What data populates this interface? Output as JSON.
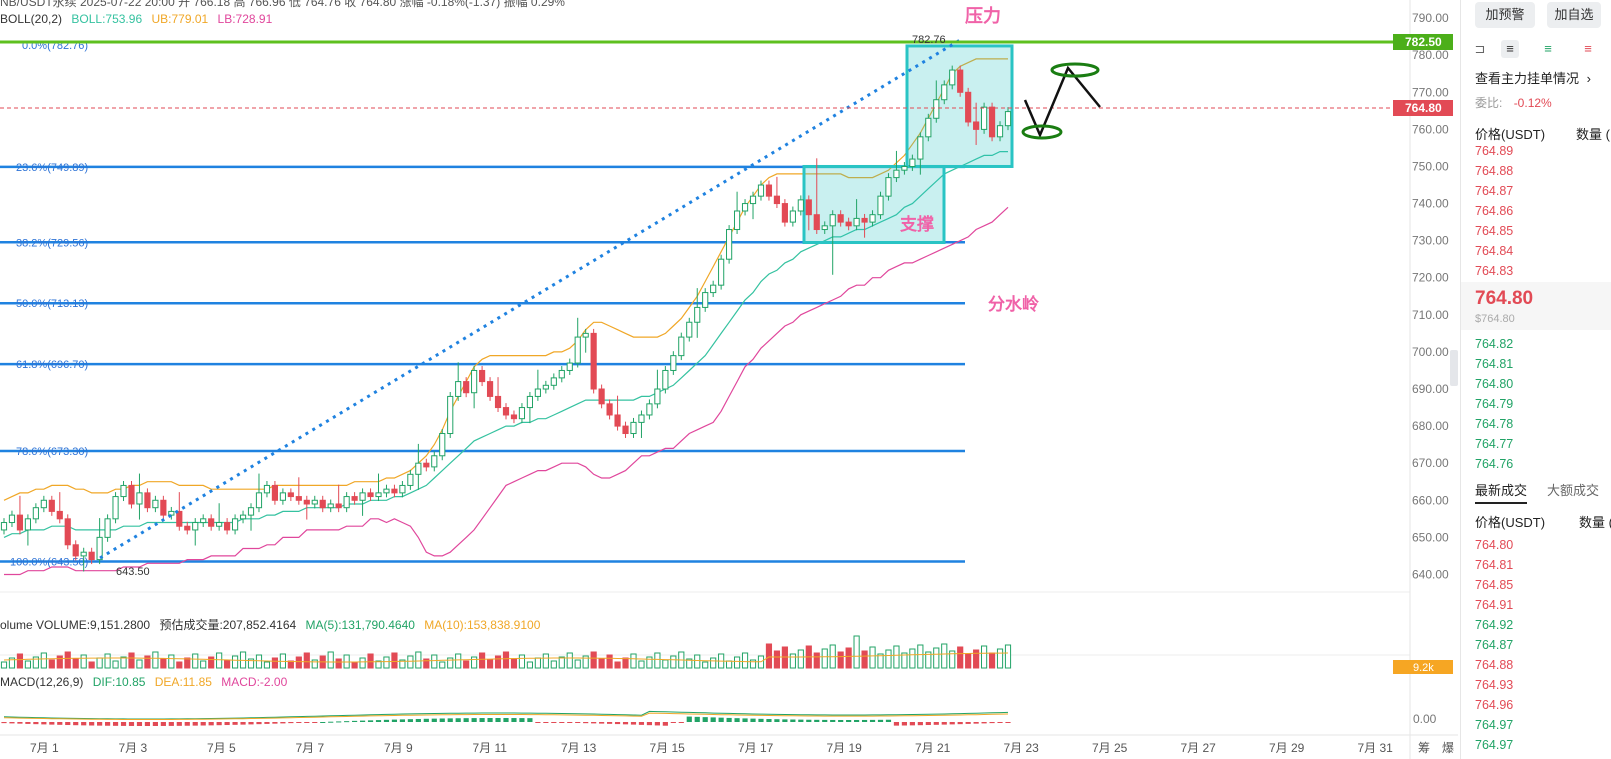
{
  "header": {
    "line1": "NB/USDT永续  2025-07-22 20:00  开 766.18  高 766.96  低 764.76  收 764.80  涨幅 -0.18%(-1.37)  振幅 0.29%",
    "boll_label": "BOLL(20,2)",
    "boll_mid": "BOLL:753.96",
    "boll_ub": "UB:779.01",
    "boll_lb": "LB:728.91"
  },
  "annotations": {
    "pressure": "压力",
    "support": "支撑",
    "watershed": "分水岭",
    "top_price": "782.76",
    "bottom_price": "643.50"
  },
  "volume_header": {
    "label": "olume  VOLUME:9,151.2800",
    "forecast": "预估成交量:207,852.4164",
    "ma5": "MA(5):131,790.4640",
    "ma10": "MA(10):153,838.9100"
  },
  "macd_header": {
    "label": "MACD(12,26,9)",
    "dif": "DIF:10.85",
    "dea": "DEA:11.85",
    "macd": "MACD:-2.00"
  },
  "price_tags": {
    "green": "782.50",
    "red": "764.80",
    "volume": "9.2k",
    "macd_zero": "0.00"
  },
  "colors": {
    "up": "#21a366",
    "down": "#e24a55",
    "fib": "#1f82e0",
    "boll_mid": "#35c2a0",
    "boll_ub": "#f0a727",
    "boll_lb": "#e0479c",
    "resistance": "#5ec01f",
    "box": "#29c4c4",
    "annotation": "#f062a8"
  },
  "chart_data": {
    "type": "candlestick",
    "symbol": "NB/USDT",
    "interval": "4h",
    "ylim": [
      635,
      793
    ],
    "y_ticks": [
      "790.00",
      "780.00",
      "770.00",
      "760.00",
      "750.00",
      "740.00",
      "730.00",
      "720.00",
      "710.00",
      "700.00",
      "690.00",
      "680.00",
      "670.00",
      "660.00",
      "650.00",
      "640.00"
    ],
    "x_labels": [
      "7月 1",
      "7月 3",
      "7月 5",
      "7月 7",
      "7月 9",
      "7月 11",
      "7月 13",
      "7月 15",
      "7月 17",
      "7月 19",
      "7月 21",
      "7月 23",
      "7月 25",
      "7月 27",
      "7月 29",
      "7月 31"
    ],
    "x_extra": [
      "筹",
      "爆"
    ],
    "fib_levels": [
      {
        "label": "0.0%(782.76)",
        "value": 782.76
      },
      {
        "label": "23.6%(749.89)",
        "value": 749.89
      },
      {
        "label": "38.2%(729.56)",
        "value": 729.56
      },
      {
        "label": "50.0%(713.13)",
        "value": 713.13
      },
      {
        "label": "61.8%(696.70)",
        "value": 696.7
      },
      {
        "label": "78.6%(673.30)",
        "value": 673.3
      },
      {
        "label": "100.0%(643.50)",
        "value": 643.5
      }
    ],
    "resistance_line": 782.5,
    "current_price": 764.8,
    "boxes": [
      {
        "name": "resistance-box",
        "from_day": 21.5,
        "to_day": 23.0,
        "low": 750,
        "high": 782.5
      },
      {
        "name": "support-box",
        "from_day": 18.6,
        "to_day": 21.2,
        "low": 729.5,
        "high": 750
      }
    ],
    "close_prices": [
      654,
      656,
      652,
      655,
      658,
      660,
      657,
      655,
      648,
      645,
      646,
      644,
      650,
      655,
      661,
      664,
      659,
      662,
      658,
      660,
      656,
      657,
      653,
      652,
      654,
      655,
      653,
      654,
      652,
      655,
      656,
      658,
      662,
      664,
      660,
      662,
      661,
      660,
      659,
      660,
      658,
      659,
      658,
      661,
      660,
      662,
      661,
      662,
      663,
      662,
      664,
      667,
      670,
      669,
      672,
      678,
      688,
      692,
      689,
      695,
      692,
      688,
      685,
      683,
      682,
      685,
      688,
      690,
      691,
      693,
      695,
      697,
      704,
      705,
      690,
      686,
      683,
      680,
      678,
      681,
      683,
      686,
      690,
      695,
      699,
      704,
      708,
      712,
      716,
      718,
      725,
      733,
      738,
      740,
      742,
      745,
      742,
      740,
      735,
      738,
      741,
      737,
      733,
      734,
      737,
      735,
      734,
      736,
      735,
      737,
      742,
      747,
      749,
      750,
      752,
      758,
      763,
      768,
      772,
      776,
      770,
      762,
      760,
      766,
      758,
      761,
      764.8
    ],
    "boll_upper": [
      660,
      661,
      662,
      662,
      663,
      663,
      664,
      664,
      664,
      663,
      663,
      662,
      662,
      662,
      663,
      663,
      664,
      664,
      665,
      665,
      665,
      665,
      664,
      664,
      664,
      664,
      663,
      663,
      663,
      663,
      663,
      663,
      663,
      663,
      664,
      664,
      664,
      664,
      664,
      664,
      664,
      664,
      664,
      664,
      665,
      665,
      665,
      665,
      666,
      666,
      667,
      668,
      670,
      672,
      675,
      679,
      684,
      688,
      692,
      696,
      698,
      699,
      699,
      699,
      699,
      699,
      699,
      699,
      699,
      700,
      700,
      701,
      703,
      706,
      708,
      708,
      707,
      706,
      705,
      704,
      704,
      704,
      704,
      705,
      707,
      709,
      712,
      715,
      719,
      723,
      727,
      731,
      735,
      739,
      742,
      745,
      747,
      748,
      748,
      748,
      748,
      748,
      748,
      748,
      748,
      748,
      747,
      747,
      747,
      747,
      748,
      749,
      751,
      753,
      756,
      759,
      763,
      767,
      771,
      775,
      777,
      778,
      779,
      779,
      779,
      779,
      779
    ],
    "boll_middle": [
      650,
      651,
      651,
      652,
      652,
      652,
      653,
      653,
      653,
      652,
      652,
      652,
      652,
      652,
      652,
      653,
      653,
      653,
      654,
      654,
      654,
      654,
      654,
      654,
      654,
      654,
      654,
      654,
      654,
      654,
      655,
      655,
      655,
      656,
      656,
      657,
      657,
      657,
      658,
      658,
      658,
      658,
      658,
      659,
      659,
      659,
      660,
      660,
      660,
      661,
      661,
      662,
      663,
      664,
      666,
      668,
      670,
      672,
      674,
      676,
      677,
      678,
      679,
      680,
      680,
      681,
      681,
      682,
      682,
      683,
      684,
      685,
      686,
      687,
      687,
      687,
      687,
      687,
      687,
      687,
      688,
      688,
      689,
      690,
      691,
      693,
      695,
      697,
      699,
      702,
      705,
      708,
      711,
      714,
      716,
      719,
      721,
      722,
      724,
      725,
      727,
      728,
      729,
      730,
      731,
      731,
      732,
      733,
      733,
      734,
      735,
      736,
      737,
      739,
      740,
      742,
      744,
      746,
      748,
      749,
      750,
      751,
      752,
      753,
      753,
      754,
      754
    ],
    "boll_lower": [
      640,
      640,
      640,
      641,
      641,
      641,
      642,
      642,
      642,
      641,
      641,
      641,
      641,
      641,
      641,
      642,
      642,
      642,
      643,
      643,
      643,
      643,
      643,
      644,
      644,
      644,
      645,
      645,
      645,
      645,
      647,
      647,
      647,
      648,
      648,
      650,
      650,
      650,
      652,
      652,
      652,
      652,
      652,
      653,
      653,
      653,
      655,
      655,
      654,
      655,
      654,
      653,
      650,
      646,
      645,
      645,
      646,
      648,
      650,
      652,
      655,
      658,
      661,
      664,
      665,
      666,
      667,
      668,
      668,
      669,
      670,
      670,
      670,
      669,
      667,
      666,
      666,
      667,
      668,
      670,
      672,
      672,
      673,
      674,
      674,
      676,
      678,
      679,
      680,
      681,
      684,
      688,
      692,
      696,
      698,
      701,
      703,
      705,
      707,
      708,
      710,
      711,
      712,
      713,
      714,
      715,
      717,
      718,
      718,
      720,
      720,
      722,
      723,
      724,
      724,
      725,
      726,
      727,
      728,
      729,
      730,
      731,
      733,
      734,
      735,
      737,
      739
    ]
  }
}
